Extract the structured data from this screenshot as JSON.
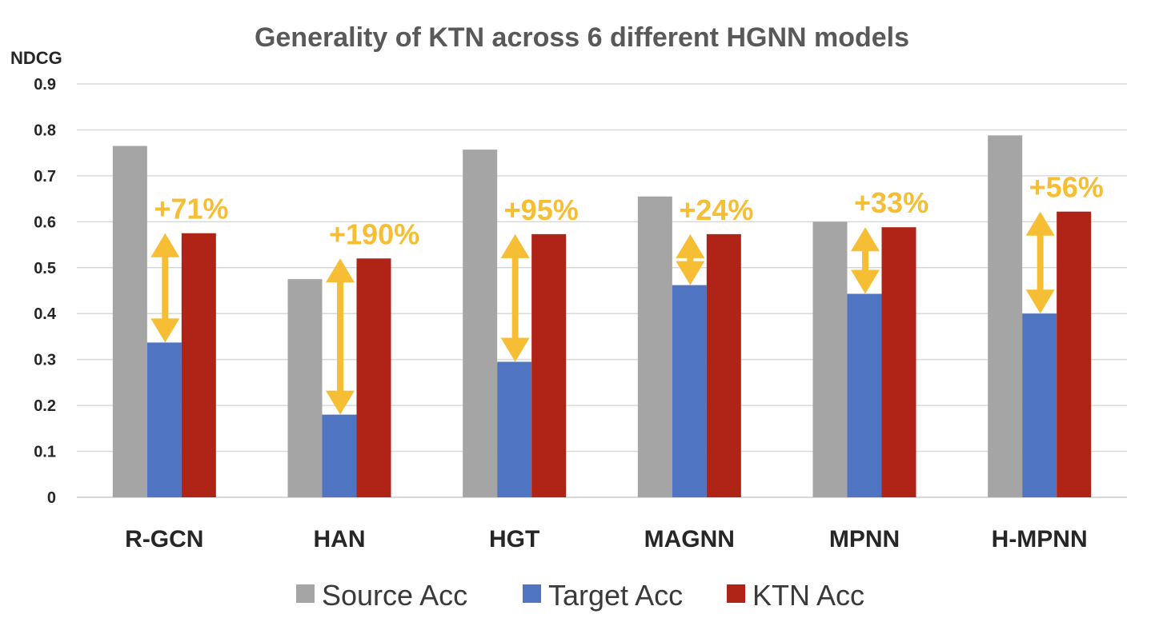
{
  "chart_data": {
    "type": "bar",
    "title": "Generality of KTN across 6 different HGNN models",
    "ylabel": "NDCG",
    "xlabel": "",
    "ylim": [
      0,
      0.9
    ],
    "yticks": [
      "0",
      "0.1",
      "0.2",
      "0.3",
      "0.4",
      "0.5",
      "0.6",
      "0.7",
      "0.8",
      "0.9"
    ],
    "grid": true,
    "legend_position": "bottom",
    "categories": [
      "R-GCN",
      "HAN",
      "HGT",
      "MAGNN",
      "MPNN",
      "H-MPNN"
    ],
    "series": [
      {
        "name": "Source Acc",
        "color": "#A5A5A5",
        "values": [
          0.765,
          0.475,
          0.757,
          0.655,
          0.6,
          0.788
        ]
      },
      {
        "name": "Target Acc",
        "color": "#4F74C2",
        "values": [
          0.337,
          0.18,
          0.295,
          0.462,
          0.443,
          0.4
        ]
      },
      {
        "name": "KTN Acc",
        "color": "#B02418",
        "values": [
          0.575,
          0.52,
          0.573,
          0.573,
          0.588,
          0.622
        ]
      }
    ],
    "annotations": [
      {
        "category": "R-GCN",
        "text": "+71%",
        "from": 0.337,
        "to": 0.575
      },
      {
        "category": "HAN",
        "text": "+190%",
        "from": 0.18,
        "to": 0.52
      },
      {
        "category": "HGT",
        "text": "+95%",
        "from": 0.295,
        "to": 0.573
      },
      {
        "category": "MAGNN",
        "text": "+24%",
        "from": 0.462,
        "to": 0.573
      },
      {
        "category": "MPNN",
        "text": "+33%",
        "from": 0.443,
        "to": 0.588
      },
      {
        "category": "H-MPNN",
        "text": "+56%",
        "from": 0.4,
        "to": 0.622
      }
    ],
    "annotation_color": "#F6BE34",
    "grid_color": "#D9D9D9"
  }
}
